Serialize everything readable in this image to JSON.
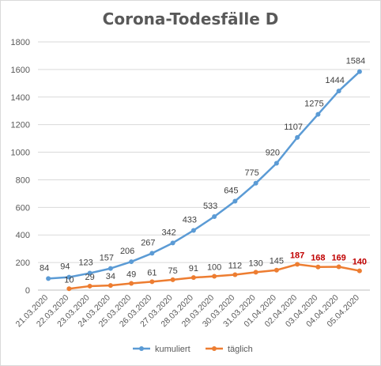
{
  "chart_data": {
    "type": "line",
    "title": "Corona-Todesfälle D",
    "xlabel": "",
    "ylabel": "",
    "ylim": [
      0,
      1800
    ],
    "yticks": [
      0,
      200,
      400,
      600,
      800,
      1000,
      1200,
      1400,
      1600,
      1800
    ],
    "grid": true,
    "legend_position": "bottom",
    "categories": [
      "21.03.2020",
      "22.03.2020",
      "23.03.2020",
      "24.03.2020",
      "25.03.2020",
      "26.03.2020",
      "27.03.2020",
      "28.03.2020",
      "29.03.2020",
      "30.03.2020",
      "31.03.2020",
      "01.04.2020",
      "02.04.2020",
      "03.04.2020",
      "04.04.2020",
      "05.04.2020"
    ],
    "series": [
      {
        "name": "kumuliert",
        "color": "#5b9bd5",
        "values": [
          84,
          94,
          123,
          157,
          206,
          267,
          342,
          433,
          533,
          645,
          775,
          920,
          1107,
          1275,
          1444,
          1584
        ]
      },
      {
        "name": "täglich",
        "color": "#ed7d31",
        "values": [
          null,
          10,
          29,
          34,
          49,
          61,
          75,
          91,
          100,
          112,
          130,
          145,
          187,
          168,
          169,
          140
        ],
        "highlight_color": "#c00000",
        "highlight_from_index": 12
      }
    ]
  }
}
